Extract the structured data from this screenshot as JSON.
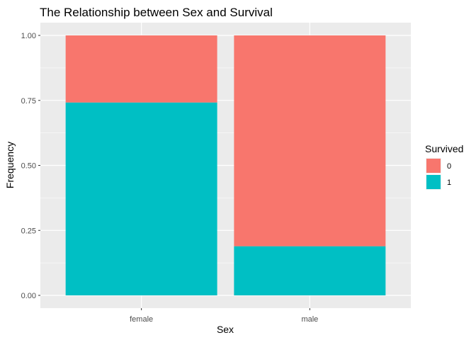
{
  "chart_data": {
    "type": "bar",
    "stacked": true,
    "title": "The Relationship between Sex and Survival",
    "xlabel": "Sex",
    "ylabel": "Frequency",
    "categories": [
      "female",
      "male"
    ],
    "ylim": [
      0,
      1
    ],
    "yticks": [
      "0.00",
      "0.25",
      "0.50",
      "0.75",
      "1.00"
    ],
    "ytick_values": [
      0,
      0.25,
      0.5,
      0.75,
      1.0
    ],
    "grid": true,
    "legend": {
      "title": "Survived",
      "placement": "right"
    },
    "series": [
      {
        "name": "1",
        "values": [
          0.742,
          0.189
        ],
        "color": "#00BFC4"
      },
      {
        "name": "0",
        "values": [
          0.258,
          0.811
        ],
        "color": "#F8766D"
      }
    ],
    "legend_order": [
      "0",
      "1"
    ],
    "panel_color": "#EBEBEB",
    "grid_color": "#FFFFFF"
  }
}
